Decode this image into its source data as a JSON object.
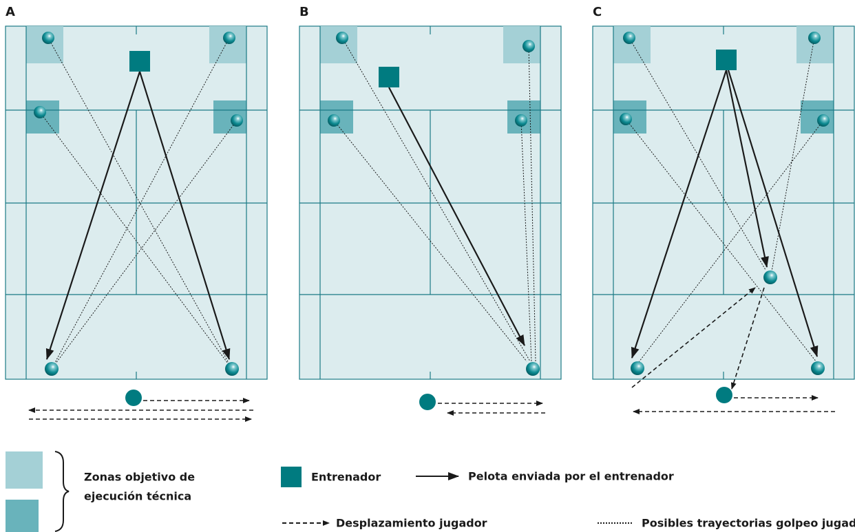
{
  "panels": [
    {
      "label": "A"
    },
    {
      "label": "B"
    },
    {
      "label": "C"
    }
  ],
  "legend": {
    "zones": [
      "Zonas objetivo de",
      "ejecución técnica"
    ],
    "coach": "Entrenador",
    "ball_sent": "Pelota enviada por el entrenador",
    "player_move": "Desplazamiento jugador",
    "player_shots": "Posibles trayectorias golpeo jugador"
  }
}
